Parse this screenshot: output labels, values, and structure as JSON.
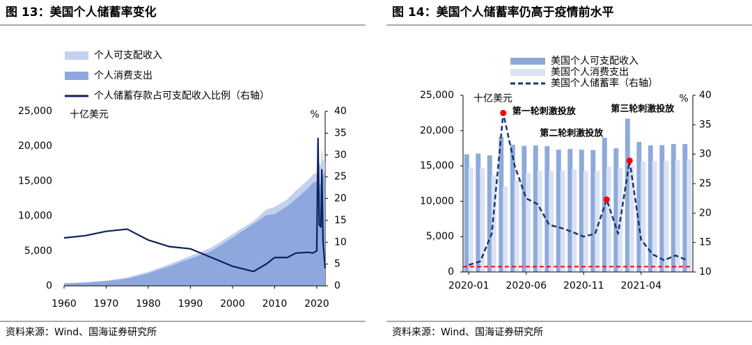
{
  "chart_data": [
    {
      "type": "area",
      "title": "图 13：美国个人储蓄率变化",
      "source": "资料来源：Wind、国海证券研究所",
      "y_unit": "十亿美元",
      "y2_unit": "%",
      "x": [
        1960,
        1965,
        1970,
        1975,
        1980,
        1985,
        1990,
        1995,
        2000,
        2005,
        2008,
        2010,
        2013,
        2015,
        2018,
        2019,
        2020,
        2020.3,
        2020.6,
        2021,
        2021.2,
        2021.5,
        2022
      ],
      "series": [
        {
          "name": "个人可支配收入",
          "type": "area",
          "color": "#c3d1ee",
          "values": [
            380,
            520,
            760,
            1200,
            2020,
            3100,
            4300,
            5500,
            7400,
            9300,
            10900,
            11300,
            12400,
            13600,
            15200,
            15900,
            16200,
            18000,
            17500,
            17300,
            19800,
            18000,
            17800
          ]
        },
        {
          "name": "个人消费支出",
          "type": "area",
          "color": "#8ea8de",
          "values": [
            330,
            460,
            670,
            1050,
            1800,
            2800,
            3900,
            5000,
            6900,
            8900,
            10100,
            10300,
            11400,
            12400,
            14000,
            14700,
            15000,
            12300,
            14200,
            14700,
            15200,
            15800,
            16500
          ]
        },
        {
          "name": "个人储蓄存款占可支配收入比例（右轴）",
          "type": "line",
          "axis": "y2",
          "color": "#0d1f5c",
          "values": [
            11,
            11.5,
            12.5,
            13,
            10.5,
            9,
            8.5,
            6.5,
            4.5,
            3.3,
            5,
            6.5,
            6.5,
            7.5,
            7.7,
            7.5,
            8,
            33.8,
            14,
            13.5,
            26.6,
            10,
            4
          ]
        }
      ],
      "xlim": [
        1960,
        2022
      ],
      "xticks": [
        1960,
        1970,
        1980,
        1990,
        2000,
        2010,
        2020
      ],
      "ylim": [
        0,
        25000
      ],
      "yticks": [
        0,
        {
          "value": 5000,
          "label": "5,000"
        },
        {
          "value": 10000,
          "label": "10,000"
        },
        {
          "value": 15000,
          "label": "15,000"
        },
        {
          "value": 20000,
          "label": "20,000"
        },
        {
          "value": 25000,
          "label": "25,000"
        }
      ],
      "y2lim": [
        0,
        40
      ],
      "y2ticks": [
        0,
        5,
        10,
        15,
        20,
        25,
        30,
        35,
        40
      ]
    },
    {
      "type": "bar",
      "title": "图 14：美国个人储蓄率仍高于疫情前水平",
      "source": "资料来源：Wind、国海证券研究所",
      "y_unit": "十亿美元",
      "y2_unit": "%",
      "categories": [
        "2020-01",
        null,
        null,
        null,
        null,
        "2020-06",
        null,
        null,
        null,
        null,
        "2020-11",
        null,
        null,
        null,
        null,
        "2021-04",
        null,
        null,
        null,
        null
      ],
      "series": [
        {
          "name": "美国个人可支配收入",
          "type": "bar",
          "color": "#8eaadb",
          "values": [
            16650,
            16750,
            16500,
            19100,
            18000,
            17850,
            17900,
            17800,
            17300,
            17400,
            17300,
            17250,
            19000,
            17500,
            21700,
            18400,
            17900,
            17950,
            18100,
            18100
          ]
        },
        {
          "name": "美国个人消费支出",
          "type": "bar",
          "color": "#dae3f3",
          "values": [
            14800,
            14700,
            13700,
            12100,
            13000,
            14000,
            14300,
            14300,
            14300,
            14500,
            14300,
            14300,
            14900,
            14700,
            15100,
            15600,
            15700,
            15700,
            15800,
            15900
          ]
        },
        {
          "name": "美国个人储蓄率（右轴）",
          "type": "line",
          "axis": "y2",
          "dash": true,
          "color": "#1f3070",
          "values": [
            11.2,
            11.8,
            16.5,
            37,
            28,
            22.5,
            21.5,
            18,
            17.5,
            16.8,
            16,
            16.5,
            22.3,
            16.5,
            28.9,
            15.5,
            13,
            12,
            12.8,
            12
          ]
        }
      ],
      "annotations": [
        {
          "text": "第一轮刺激投放",
          "at": 3
        },
        {
          "text": "第二轮刺激投放",
          "at": 12
        },
        {
          "text": "第三轮刺激投放",
          "at": 14
        }
      ],
      "annotation_color": "#ff0000",
      "ref_line": {
        "axis": "y2",
        "value": 10.9,
        "color": "#ff0000"
      },
      "ylim": [
        0,
        25000
      ],
      "yticks": [
        0,
        {
          "value": 5000,
          "label": "5,000"
        },
        {
          "value": 10000,
          "label": "10,000"
        },
        {
          "value": 15000,
          "label": "15,000"
        },
        {
          "value": 20000,
          "label": "20,000"
        },
        {
          "value": 25000,
          "label": "25,000"
        }
      ],
      "y2lim": [
        10,
        40
      ],
      "y2ticks": [
        10,
        15,
        20,
        25,
        30,
        35,
        40
      ]
    }
  ]
}
